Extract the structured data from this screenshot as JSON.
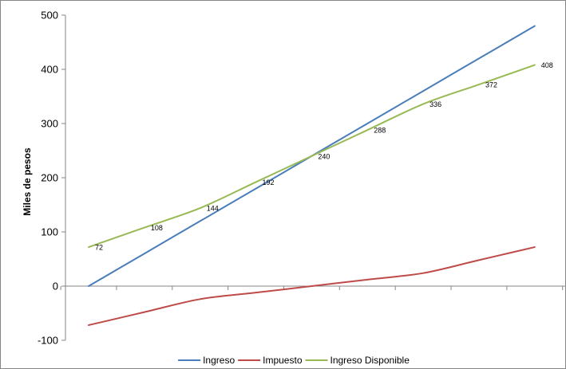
{
  "chart_data": {
    "type": "line",
    "title": "",
    "xlabel": "",
    "ylabel": "Miles  de  pesos",
    "ylim": [
      -100,
      500
    ],
    "yticks": [
      -100,
      0,
      100,
      200,
      300,
      400,
      500
    ],
    "y_tick_labels": [
      "-100",
      "0",
      "100",
      "200",
      "300",
      "400",
      "500"
    ],
    "x": [
      0,
      1,
      2,
      3,
      4,
      5,
      6,
      7,
      8
    ],
    "grid": false,
    "legend_position": "bottom",
    "series": [
      {
        "name": "Ingreso",
        "color": "#4a7ebb",
        "values": [
          0,
          60,
          120,
          180,
          240,
          300,
          360,
          420,
          480
        ]
      },
      {
        "name": "Impuesto",
        "color": "#be4b48",
        "values": [
          -72,
          -48,
          -24,
          -12,
          0,
          12,
          24,
          48,
          72
        ]
      },
      {
        "name": "Ingreso Disponible",
        "color": "#98b954",
        "values": [
          72,
          108,
          144,
          192,
          240,
          288,
          336,
          372,
          408
        ],
        "data_labels": [
          "72",
          "108",
          "144",
          "192",
          "240",
          "288",
          "336",
          "372",
          "408"
        ]
      }
    ]
  }
}
